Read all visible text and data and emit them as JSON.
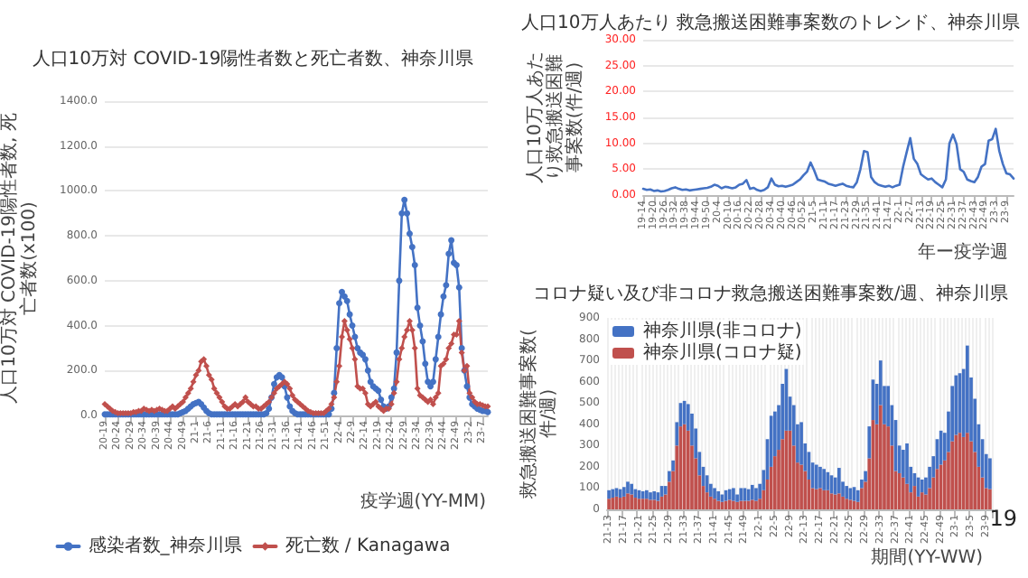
{
  "chart_data": [
    {
      "type": "line",
      "title": "人口10万対 COVID-19陽性者数と死亡者数、神奈川県",
      "xlabel": "疫学週(YY-MM)",
      "ylabel": "人口10万対 COVID-19陽性者数, 死亡者数(x100)",
      "categories": [
        "20-19",
        null,
        null,
        null,
        null,
        "20-24",
        null,
        null,
        null,
        null,
        "20-29",
        null,
        null,
        null,
        null,
        "20-34",
        null,
        null,
        null,
        null,
        "20-39",
        null,
        null,
        null,
        null,
        "20-44",
        null,
        null,
        null,
        null,
        "20-49",
        null,
        null,
        null,
        null,
        "21-1",
        null,
        null,
        null,
        null,
        "21-6",
        null,
        null,
        null,
        null,
        "21-11",
        null,
        null,
        null,
        null,
        "21-16",
        null,
        null,
        null,
        null,
        "21-21",
        null,
        null,
        null,
        null,
        "21-26",
        null,
        null,
        null,
        null,
        "21-31",
        null,
        null,
        null,
        null,
        "21-36",
        null,
        null,
        null,
        null,
        "21-41",
        null,
        null,
        null,
        null,
        "21-46",
        null,
        null,
        null,
        null,
        "21-51",
        null,
        null,
        null,
        null,
        "22-4",
        null,
        null,
        null,
        null,
        "22-9",
        null,
        null,
        null,
        null,
        "22-14",
        null,
        null,
        null,
        null,
        "22-19",
        null,
        null,
        null,
        null,
        "22-24",
        null,
        null,
        null,
        null,
        "22-29",
        null,
        null,
        null,
        null,
        "22-34",
        null,
        null,
        null,
        null,
        "22-39",
        null,
        null,
        null,
        null,
        "22-44",
        null,
        null,
        null,
        null,
        "22-49",
        null,
        null,
        null,
        null,
        "23-2",
        null,
        null,
        null,
        null,
        "23-7",
        null,
        null
      ],
      "series": [
        {
          "name": "感染者数_神奈川県",
          "color": "#4472c4",
          "marker": "circle",
          "values": [
            5,
            5,
            5,
            5,
            5,
            5,
            5,
            5,
            5,
            5,
            5,
            5,
            5,
            5,
            5,
            5,
            5,
            5,
            5,
            5,
            5,
            5,
            5,
            5,
            5,
            5,
            5,
            5,
            5,
            10,
            15,
            20,
            30,
            40,
            50,
            55,
            60,
            50,
            35,
            20,
            10,
            5,
            5,
            5,
            5,
            5,
            5,
            5,
            5,
            5,
            5,
            5,
            5,
            5,
            5,
            5,
            5,
            5,
            5,
            5,
            5,
            5,
            10,
            30,
            80,
            140,
            170,
            180,
            170,
            130,
            80,
            40,
            20,
            10,
            5,
            5,
            5,
            5,
            5,
            5,
            5,
            5,
            5,
            5,
            5,
            5,
            5,
            30,
            100,
            300,
            500,
            550,
            530,
            510,
            450,
            400,
            350,
            300,
            280,
            270,
            250,
            200,
            150,
            130,
            120,
            110,
            70,
            40,
            30,
            40,
            80,
            120,
            280,
            600,
            900,
            960,
            900,
            810,
            750,
            670,
            480,
            400,
            330,
            230,
            150,
            130,
            150,
            250,
            350,
            450,
            530,
            580,
            720,
            780,
            680,
            670,
            570,
            300,
            200,
            130,
            80,
            50,
            40,
            30,
            25,
            20,
            20,
            15
          ]
        },
        {
          "name": "死亡数 / Kanagawa",
          "color": "#c0504d",
          "marker": "diamond",
          "values": [
            50,
            40,
            30,
            20,
            15,
            10,
            10,
            10,
            10,
            10,
            10,
            15,
            15,
            20,
            20,
            30,
            25,
            20,
            25,
            20,
            25,
            30,
            25,
            20,
            20,
            30,
            40,
            30,
            40,
            50,
            60,
            80,
            100,
            120,
            150,
            180,
            200,
            240,
            250,
            220,
            180,
            160,
            120,
            100,
            80,
            60,
            40,
            30,
            30,
            40,
            50,
            40,
            50,
            60,
            80,
            60,
            50,
            40,
            40,
            30,
            30,
            40,
            50,
            60,
            80,
            100,
            120,
            130,
            140,
            150,
            140,
            120,
            90,
            70,
            60,
            50,
            40,
            30,
            20,
            15,
            10,
            10,
            10,
            10,
            10,
            20,
            30,
            50,
            80,
            150,
            220,
            350,
            420,
            380,
            340,
            300,
            250,
            130,
            120,
            120,
            100,
            50,
            40,
            50,
            60,
            40,
            30,
            20,
            30,
            30,
            50,
            100,
            150,
            250,
            300,
            350,
            380,
            420,
            380,
            300,
            120,
            90,
            80,
            70,
            60,
            70,
            50,
            80,
            100,
            220,
            230,
            250,
            300,
            320,
            360,
            360,
            420,
            280,
            200,
            220,
            100,
            80,
            60,
            50,
            50,
            45,
            40,
            40
          ]
        }
      ],
      "ylim": [
        0,
        1400
      ],
      "yticks": [
        {
          "value": 0,
          "label": "0.0"
        },
        {
          "value": 200,
          "label": "200.0"
        },
        {
          "value": 400,
          "label": "400.0"
        },
        {
          "value": 600,
          "label": "600.0"
        },
        {
          "value": 800,
          "label": "800.0"
        },
        {
          "value": 1000,
          "label": "1000.0"
        },
        {
          "value": 1200,
          "label": "1200.0"
        },
        {
          "value": 1400,
          "label": "1400.0"
        }
      ],
      "grid": "y",
      "legend": "bottom",
      "line_style": "solid"
    },
    {
      "type": "line",
      "title": "人口10万人あたり 救急搬送困難事案数のトレンド、神奈川県",
      "xlabel": "年ー疫学週",
      "ylabel": "人口10万人あたり救急搬送困難事案数(件/週)",
      "categories": [
        "19-14",
        null,
        null,
        "19-20",
        null,
        null,
        "19-26",
        null,
        null,
        "19-32",
        null,
        null,
        "19-38",
        null,
        null,
        "19-44",
        null,
        null,
        "19-50",
        null,
        null,
        "20-4",
        null,
        null,
        "20-10",
        null,
        null,
        "20-16",
        null,
        null,
        "20-22",
        null,
        null,
        "20-28",
        null,
        null,
        "20-34",
        null,
        null,
        "20-40",
        null,
        null,
        "20-46",
        null,
        null,
        "20-52",
        null,
        null,
        "21-5",
        null,
        null,
        "21-11",
        null,
        null,
        "21-17",
        null,
        null,
        "21-23",
        null,
        null,
        "21-29",
        null,
        null,
        "21-35",
        null,
        null,
        "21-41",
        null,
        null,
        "21-47",
        null,
        null,
        "22-1",
        null,
        null,
        "22-7",
        null,
        null,
        "22-13",
        null,
        null,
        "22-19",
        null,
        null,
        "22-25",
        null,
        null,
        "22-31",
        null,
        null,
        "22-37",
        null,
        null,
        "22-43",
        null,
        null,
        "22-49",
        null,
        null,
        "23-3",
        null,
        null,
        "23-9",
        null,
        null
      ],
      "series": [
        {
          "color": "#4472c4",
          "values": [
            1.2,
            1.0,
            1.1,
            0.8,
            0.9,
            0.7,
            0.8,
            1.0,
            1.3,
            1.5,
            1.2,
            1.0,
            1.1,
            0.9,
            1.0,
            1.1,
            1.2,
            1.3,
            1.4,
            1.6,
            2.0,
            1.8,
            1.3,
            1.6,
            1.5,
            1.3,
            1.5,
            2.0,
            2.2,
            2.9,
            1.2,
            1.4,
            1.0,
            0.8,
            1.0,
            1.5,
            3.2,
            2.0,
            1.7,
            1.8,
            1.6,
            1.8,
            2.0,
            2.5,
            3.0,
            3.8,
            4.5,
            6.3,
            4.8,
            3.0,
            2.8,
            2.6,
            2.2,
            2.0,
            1.8,
            2.0,
            2.2,
            1.8,
            1.6,
            1.5,
            2.5,
            5.0,
            8.5,
            8.3,
            3.5,
            2.5,
            2.0,
            1.8,
            1.6,
            1.8,
            1.5,
            1.8,
            2.0,
            5.5,
            8.3,
            11.0,
            7.0,
            6.0,
            4.0,
            3.5,
            3.0,
            3.2,
            2.5,
            2.0,
            1.5,
            3.0,
            10.0,
            11.7,
            9.8,
            5.0,
            4.5,
            3.0,
            2.7,
            2.5,
            3.5,
            5.5,
            6.0,
            10.5,
            10.8,
            12.8,
            8.5,
            6.0,
            4.2,
            4.0,
            3.2
          ]
        }
      ],
      "ylim": [
        0,
        30
      ],
      "yticks": [
        {
          "value": 0,
          "label": "0.00"
        },
        {
          "value": 5,
          "label": "5.00"
        },
        {
          "value": 10,
          "label": "10.00"
        },
        {
          "value": 15,
          "label": "15.00"
        },
        {
          "value": 20,
          "label": "20.00"
        },
        {
          "value": 25,
          "label": "25.00"
        },
        {
          "value": 30,
          "label": "30.00"
        }
      ],
      "grid": "y",
      "marker": "none",
      "line_style": "solid"
    },
    {
      "type": "bar",
      "title": "コロナ疑い及び非コロナ救急搬送困難事案数/週、神奈川県",
      "xlabel": "期間(YY-WW)",
      "ylabel": "救急搬送困難事案数(件/週)",
      "annotations": [
        "19"
      ],
      "categories": [
        "21-13",
        null,
        null,
        null,
        "21-17",
        null,
        null,
        null,
        "21-21",
        null,
        null,
        null,
        "21-25",
        null,
        null,
        null,
        "21-29",
        null,
        null,
        null,
        "21-33",
        null,
        null,
        null,
        "21-37",
        null,
        null,
        null,
        "21-41",
        null,
        null,
        null,
        "21-45",
        null,
        null,
        null,
        "21-49",
        null,
        null,
        null,
        "22-1",
        null,
        null,
        null,
        "22-5",
        null,
        null,
        null,
        "22-9",
        null,
        null,
        null,
        "22-13",
        null,
        null,
        null,
        "22-17",
        null,
        null,
        null,
        "22-21",
        null,
        null,
        null,
        "22-25",
        null,
        null,
        null,
        "22-29",
        null,
        null,
        null,
        "22-33",
        null,
        null,
        null,
        "22-37",
        null,
        null,
        null,
        "22-41",
        null,
        null,
        null,
        "22-45",
        null,
        null,
        null,
        "22-49",
        null,
        null,
        null,
        "23-1",
        null,
        null,
        null,
        "23-5",
        null,
        null,
        null,
        "23-9",
        null
      ],
      "series": [
        {
          "name": "神奈川県(コロナ疑)",
          "color": "#c0504d",
          "values": [
            50,
            55,
            60,
            55,
            60,
            75,
            70,
            55,
            50,
            50,
            50,
            45,
            45,
            40,
            60,
            70,
            130,
            180,
            300,
            390,
            400,
            370,
            300,
            240,
            160,
            110,
            80,
            60,
            50,
            40,
            35,
            40,
            45,
            40,
            35,
            40,
            40,
            40,
            45,
            40,
            50,
            90,
            140,
            200,
            250,
            280,
            330,
            370,
            370,
            300,
            220,
            210,
            180,
            140,
            100,
            95,
            100,
            90,
            90,
            75,
            70,
            75,
            60,
            50,
            45,
            40,
            35,
            100,
            130,
            240,
            420,
            400,
            490,
            400,
            390,
            300,
            180,
            170,
            150,
            120,
            80,
            110,
            60,
            80,
            70,
            100,
            150,
            190,
            210,
            230,
            270,
            320,
            350,
            360,
            340,
            360,
            320,
            270,
            200,
            150,
            100,
            95
          ]
        },
        {
          "name": "神奈川県(非コロナ)",
          "color": "#4472c4",
          "values": [
            40,
            40,
            40,
            40,
            45,
            55,
            50,
            40,
            40,
            35,
            40,
            35,
            40,
            40,
            50,
            40,
            50,
            50,
            110,
            110,
            110,
            125,
            150,
            140,
            110,
            90,
            80,
            60,
            50,
            45,
            35,
            50,
            50,
            60,
            35,
            60,
            60,
            55,
            70,
            60,
            70,
            95,
            190,
            240,
            210,
            210,
            260,
            290,
            160,
            190,
            180,
            200,
            130,
            130,
            120,
            115,
            100,
            100,
            85,
            85,
            80,
            120,
            70,
            60,
            55,
            65,
            55,
            40,
            50,
            150,
            190,
            190,
            210,
            180,
            190,
            190,
            240,
            130,
            130,
            190,
            120,
            60,
            90,
            60,
            80,
            100,
            100,
            140,
            160,
            130,
            190,
            260,
            280,
            280,
            320,
            410,
            300,
            250,
            200,
            180,
            160,
            145
          ]
        }
      ],
      "stacked": true,
      "ylim": [
        0,
        900
      ],
      "yticks": [
        0,
        100,
        200,
        300,
        400,
        500,
        600,
        700,
        800,
        900
      ],
      "grid": "x",
      "legend": "top left"
    }
  ]
}
